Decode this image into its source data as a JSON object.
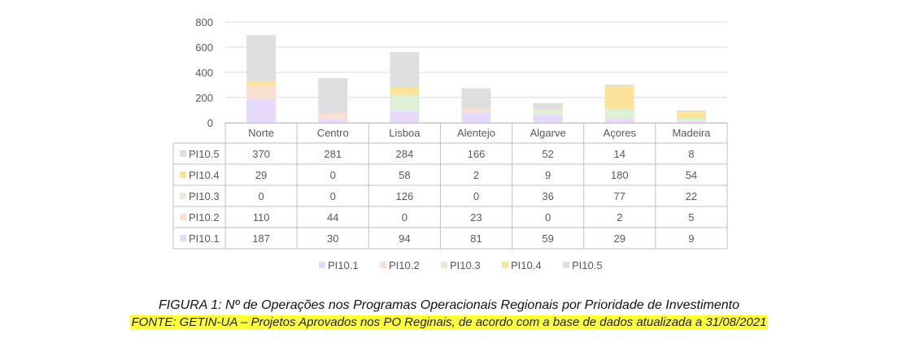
{
  "caption": {
    "figure": "FIGURA 1: Nº de Operações nos Programas Operacionais Regionais por Prioridade de Investimento",
    "source": "FONTE: GETIN-UA – Projetos Aprovados nos PO Reginais, de acordo com a base de dados atualizada a 31/08/2021",
    "source_highlight": "#ffff3a"
  },
  "chart_data": {
    "type": "bar",
    "stacked": true,
    "title": "",
    "xlabel": "",
    "ylabel": "",
    "ylim": [
      0,
      800
    ],
    "yticks": [
      0,
      200,
      400,
      600,
      800
    ],
    "grid": true,
    "legend_position": "bottom",
    "data_table": true,
    "categories": [
      "Norte",
      "Centro",
      "Lisboa",
      "Alentejo",
      "Algarve",
      "Açores",
      "Madeira"
    ],
    "series": [
      {
        "name": "PI10.1",
        "color": "#e6d9fa",
        "values": [
          187,
          30,
          94,
          81,
          59,
          29,
          9
        ]
      },
      {
        "name": "PI10.2",
        "color": "#f9e1d2",
        "values": [
          110,
          44,
          0,
          23,
          0,
          2,
          5
        ]
      },
      {
        "name": "PI10.3",
        "color": "#dcf0d6",
        "values": [
          0,
          0,
          126,
          0,
          36,
          77,
          22
        ]
      },
      {
        "name": "PI10.4",
        "color": "#fde29a",
        "values": [
          29,
          0,
          58,
          2,
          9,
          180,
          54
        ]
      },
      {
        "name": "PI10.5",
        "color": "#dedede",
        "values": [
          370,
          281,
          284,
          166,
          52,
          14,
          8
        ]
      }
    ]
  }
}
